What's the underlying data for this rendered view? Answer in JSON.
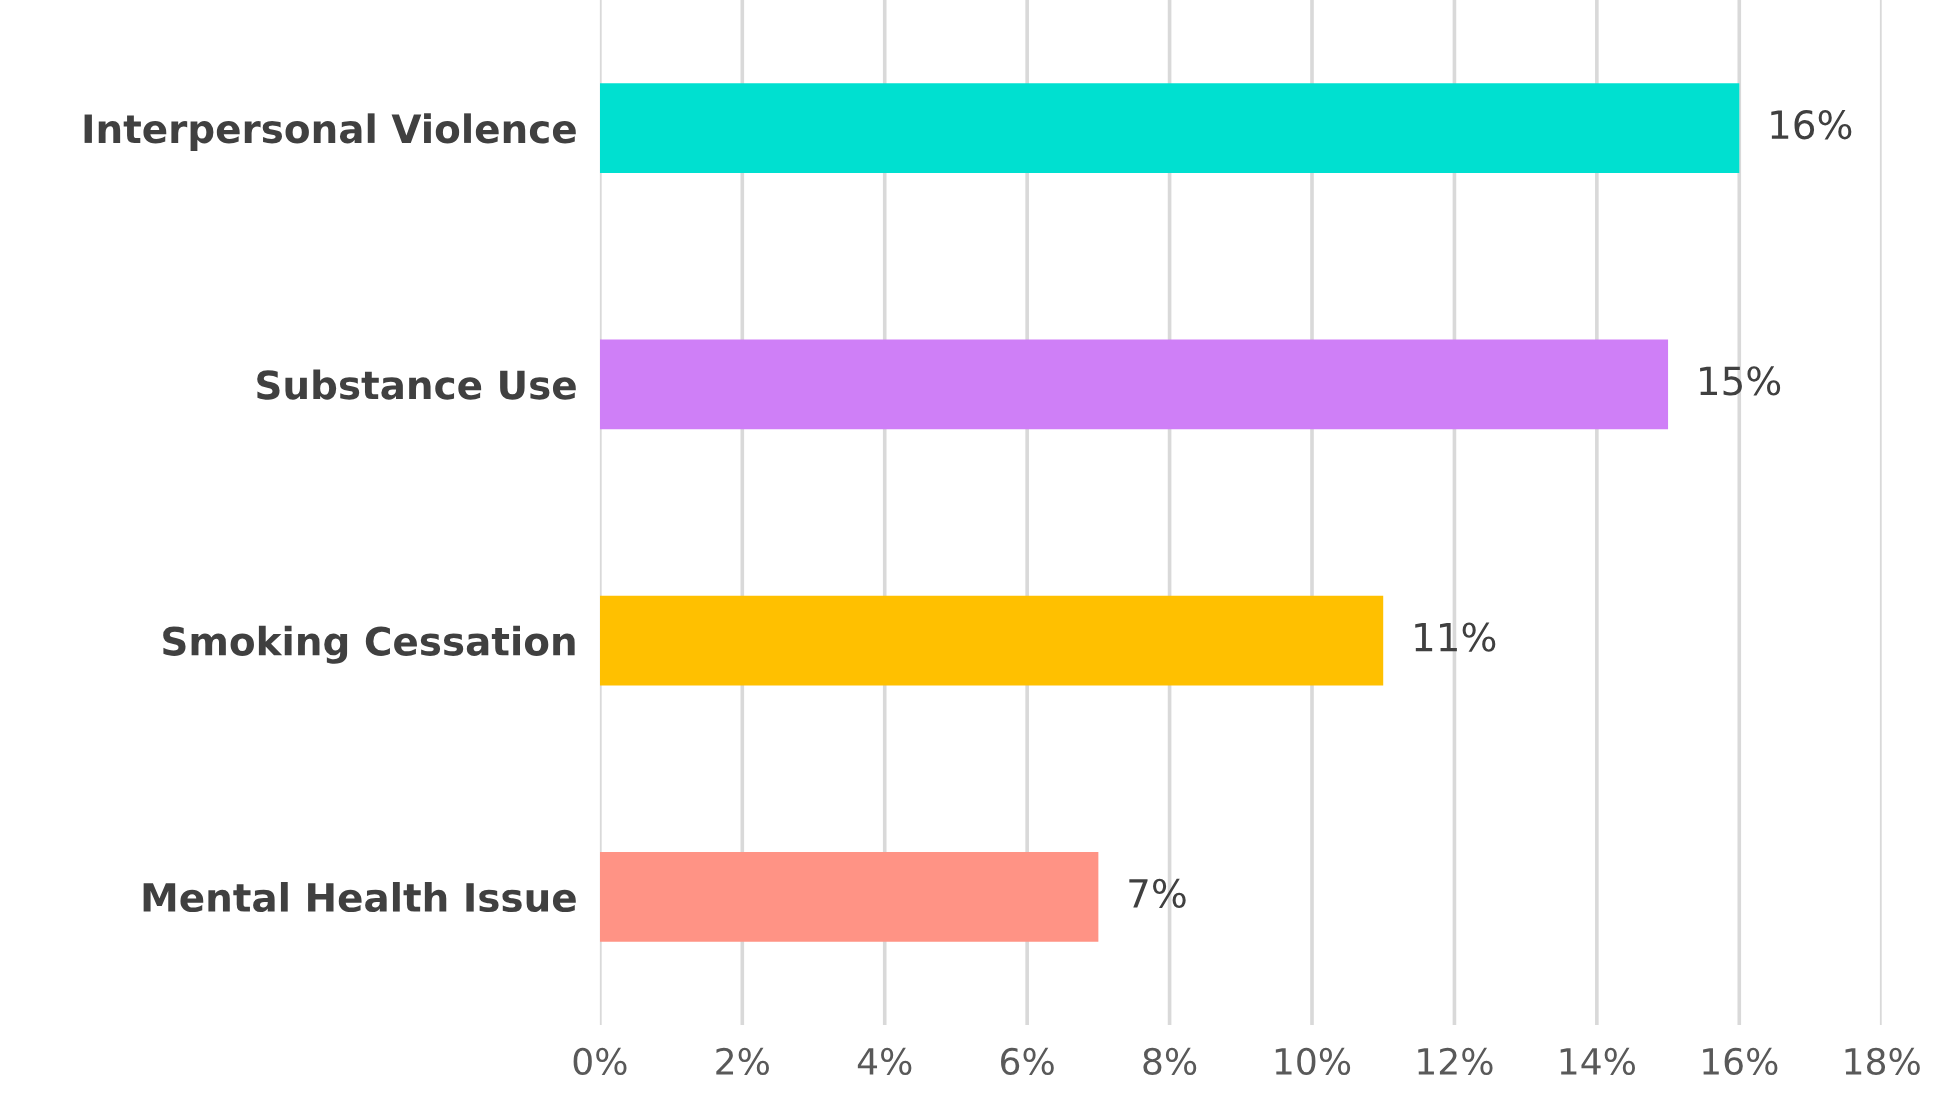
{
  "chart_data": {
    "type": "bar",
    "orientation": "horizontal",
    "categories": [
      "Interpersonal Violence",
      "Substance Use",
      "Smoking Cessation",
      "Mental Health Issue"
    ],
    "values": [
      16,
      15,
      11,
      7
    ],
    "colors": [
      "#00e0d0",
      "#cf7ff7",
      "#ffc000",
      "#ff9385"
    ],
    "value_labels": [
      "16%",
      "15%",
      "11%",
      "7%"
    ],
    "xlim": [
      0,
      18
    ],
    "xticks": [
      {
        "value": 0,
        "label": "0%"
      },
      {
        "value": 2,
        "label": "2%"
      },
      {
        "value": 4,
        "label": "4%"
      },
      {
        "value": 6,
        "label": "6%"
      },
      {
        "value": 8,
        "label": "8%"
      },
      {
        "value": 10,
        "label": "10%"
      },
      {
        "value": 12,
        "label": "12%"
      },
      {
        "value": 14,
        "label": "14%"
      },
      {
        "value": 16,
        "label": "16%"
      },
      {
        "value": 18,
        "label": "18%"
      }
    ],
    "grid": "x",
    "legend": false
  }
}
